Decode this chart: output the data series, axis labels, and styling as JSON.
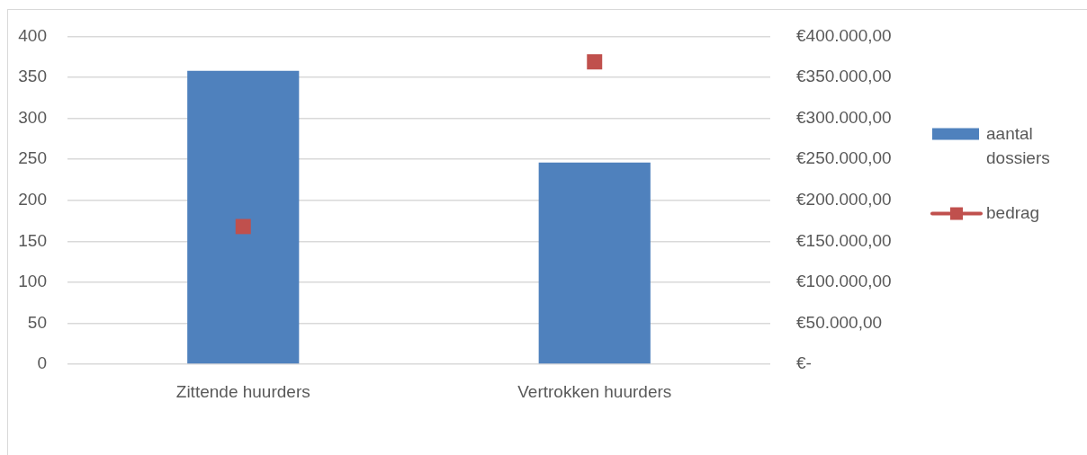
{
  "chart_data": {
    "type": "bar",
    "categories": [
      "Zittende huurders",
      "Vertrokken huurders"
    ],
    "series": [
      {
        "name": "aantal dossiers",
        "color": "#4f81bd",
        "values": [
          358,
          246
        ]
      },
      {
        "name": "bedrag",
        "type": "scatter",
        "axis": "y2",
        "color": "#c0504d",
        "x": [
          "Zittende huurders",
          "Vertrokken huurders"
        ],
        "values": [
          168000,
          369000
        ]
      }
    ],
    "ylim": [
      0,
      400
    ],
    "yticks": [
      0,
      50,
      100,
      150,
      200,
      250,
      300,
      350,
      400
    ],
    "y2lim": [
      0,
      400000
    ],
    "y2ticks": [
      {
        "value": 0,
        "label": "€-"
      },
      {
        "value": 50000,
        "label": "€50.000,00"
      },
      {
        "value": 100000,
        "label": "€100.000,00"
      },
      {
        "value": 150000,
        "label": "€150.000,00"
      },
      {
        "value": 200000,
        "label": "€200.000,00"
      },
      {
        "value": 250000,
        "label": "€250.000,00"
      },
      {
        "value": 300000,
        "label": "€300.000,00"
      },
      {
        "value": 350000,
        "label": "€350.000,00"
      },
      {
        "value": 400000,
        "label": "€400.000,00"
      }
    ],
    "grid": "y",
    "legend": "right",
    "marker": "square"
  }
}
